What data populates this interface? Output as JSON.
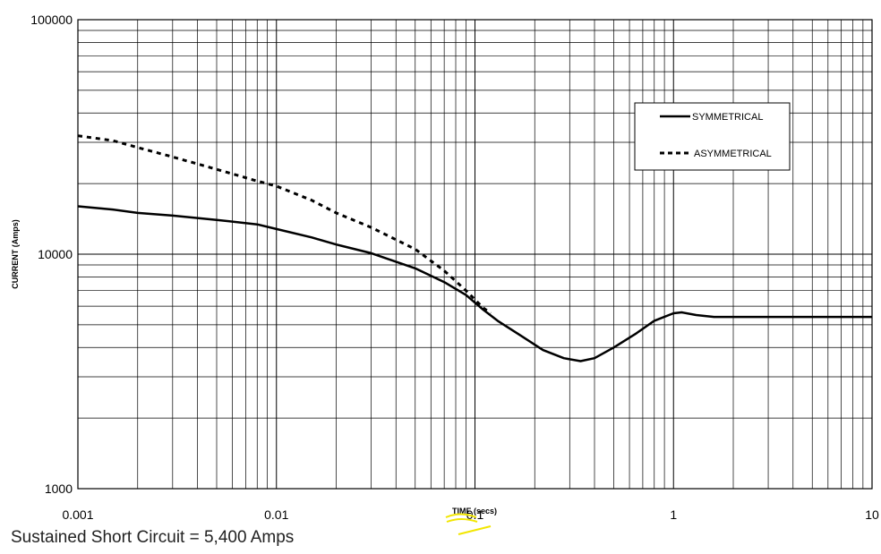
{
  "chart_data": {
    "type": "line",
    "xscale": "log",
    "yscale": "log",
    "xlim": [
      0.001,
      10
    ],
    "ylim": [
      1000,
      100000
    ],
    "xlabel": "TIME (secs)",
    "ylabel": "CURRENT (Amps)",
    "x_ticks": [
      "0.001",
      "0.01",
      "0.1",
      "1",
      "10"
    ],
    "y_ticks": [
      "1000",
      "10000",
      "100000"
    ],
    "grid": true,
    "legend_position": "upper-right",
    "series": [
      {
        "name": "SYMMETRICAL",
        "style": "solid",
        "x": [
          0.001,
          0.0015,
          0.002,
          0.003,
          0.005,
          0.008,
          0.01,
          0.015,
          0.02,
          0.03,
          0.05,
          0.07,
          0.09,
          0.11,
          0.13,
          0.17,
          0.22,
          0.28,
          0.34,
          0.4,
          0.5,
          0.65,
          0.8,
          1.0,
          1.1,
          1.3,
          1.6,
          2,
          3,
          5,
          10
        ],
        "y": [
          16000,
          15500,
          15000,
          14600,
          14000,
          13400,
          12800,
          11800,
          11000,
          10100,
          8700,
          7600,
          6700,
          5800,
          5200,
          4500,
          3900,
          3600,
          3500,
          3600,
          4000,
          4600,
          5200,
          5600,
          5650,
          5500,
          5400,
          5400,
          5400,
          5400,
          5400
        ]
      },
      {
        "name": "ASYMMETRICAL",
        "style": "dashed",
        "x": [
          0.001,
          0.0015,
          0.002,
          0.003,
          0.005,
          0.008,
          0.01,
          0.015,
          0.02,
          0.03,
          0.05,
          0.07,
          0.09,
          0.11,
          0.12
        ],
        "y": [
          32000,
          30500,
          28500,
          26000,
          23000,
          20500,
          19500,
          17000,
          15000,
          13000,
          10500,
          8500,
          7000,
          5900,
          5600
        ]
      }
    ],
    "annotation": "Sustained Short Circuit = 5,400 Amps"
  }
}
